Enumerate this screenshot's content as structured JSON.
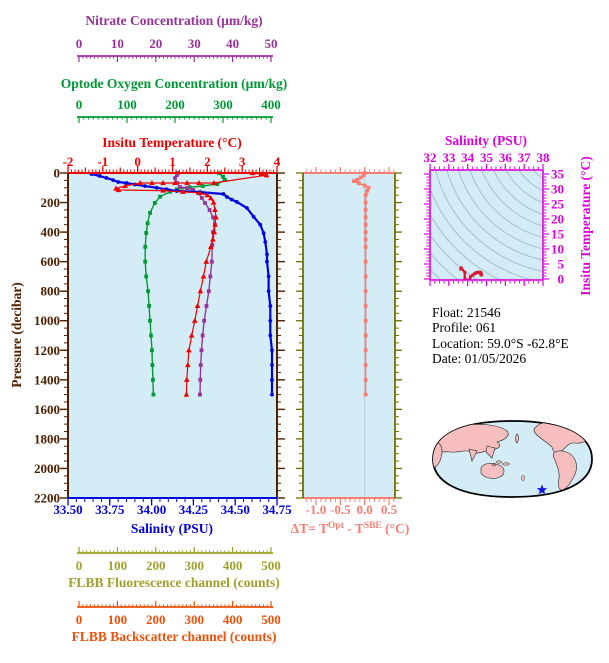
{
  "info_block": {
    "lines": [
      "Float:  21546",
      "Profile:  061",
      "Location:  59.0°S  -62.8°E",
      "Date:  01/05/2026"
    ]
  },
  "colors": {
    "nitrate": "#993399",
    "oxygen": "#009934",
    "temperature": "#ee0000",
    "pressure": "#4e2000",
    "salinity": "#0000dd",
    "delta_t": "#f97d72",
    "panel_side_olive": "#6f6f00",
    "fluorescence": "#a0a02c",
    "backscatter": "#ec520b",
    "ts_axis": "#dd00dd",
    "panel_bg": "#d3ecf5",
    "contour": "#a6bfca",
    "ts_trace": "#da1a32",
    "zero_line": "#bccfd8",
    "map_land": "#f6bebe",
    "map_outline": "#000000",
    "star": "#1212dd",
    "info_text": "#000000"
  },
  "scalebars": {
    "nitrate": {
      "title": "Nitrate Concentration (µm/kg)",
      "tick_values": [
        0,
        10,
        20,
        30,
        40,
        50
      ],
      "tick_labels": [
        "0",
        "10",
        "20",
        "30",
        "40",
        "50"
      ],
      "min": 0,
      "max": 50,
      "minor_step": 1
    },
    "oxygen": {
      "title": "Optode Oxygen Concentration (µm/kg)",
      "tick_values": [
        0,
        100,
        200,
        300,
        400
      ],
      "tick_labels": [
        "0",
        "100",
        "200",
        "300",
        "400"
      ],
      "min": 0,
      "max": 400,
      "minor_step": 10
    },
    "fluorescence": {
      "title": "FLBB Fluorescence channel (counts)",
      "tick_values": [
        0,
        100,
        200,
        300,
        400,
        500
      ],
      "tick_labels": [
        "0",
        "100",
        "200",
        "300",
        "400",
        "500"
      ],
      "min": 0,
      "max": 500,
      "minor_step": 10
    },
    "backscatter": {
      "title": "FLBB Backscatter channel (counts)",
      "tick_values": [
        0,
        100,
        200,
        300,
        400,
        500
      ],
      "tick_labels": [
        "0",
        "100",
        "200",
        "300",
        "400",
        "500"
      ],
      "min": 0,
      "max": 500,
      "minor_step": 10
    }
  },
  "main_panel": {
    "temperature_axis": {
      "title": "Insitu Temperature (°C)",
      "tick_values": [
        -2,
        -1,
        0,
        1,
        2,
        3,
        4
      ],
      "tick_labels": [
        "-2",
        "-1",
        "0",
        "1",
        "2",
        "3",
        "4"
      ],
      "min": -2,
      "max": 4,
      "minor_step": 0.1,
      "mid_step": 0.5
    },
    "pressure_axis": {
      "title": "Pressure (decibar)",
      "tick_values": [
        0,
        200,
        400,
        600,
        800,
        1000,
        1200,
        1400,
        1600,
        1800,
        2000,
        2200
      ],
      "tick_labels": [
        "0",
        "200",
        "400",
        "600",
        "800",
        "1000",
        "1200",
        "1400",
        "1600",
        "1800",
        "2000",
        "2200"
      ],
      "min": 0,
      "max": 2200,
      "minor_step": 50
    },
    "salinity_axis": {
      "title": "Salinity (PSU)",
      "tick_values": [
        33.5,
        33.75,
        34.0,
        34.25,
        34.5,
        34.75
      ],
      "tick_labels": [
        "33.50",
        "33.75",
        "34.00",
        "34.25",
        "34.50",
        "34.75"
      ],
      "min": 33.5,
      "max": 34.75,
      "minor_step": 0.05
    }
  },
  "dt_panel": {
    "x_axis": {
      "title_parts": {
        "pre": "ΔT= T",
        "sup1": "Opt",
        "mid": " - T",
        "sup2": "SBE",
        "post": " (°C)"
      },
      "tick_values": [
        -1,
        -0.5,
        0,
        0.5
      ],
      "tick_labels": [
        "-1.0",
        "-0.5",
        "0.0",
        "0.5"
      ],
      "min": -1.2,
      "max": 0.6,
      "minor_step": 0.1
    }
  },
  "ts_panel": {
    "x_axis": {
      "title": "Salinity (PSU)",
      "tick_values": [
        32,
        33,
        34,
        35,
        36,
        37,
        38
      ],
      "tick_labels": [
        "32",
        "33",
        "34",
        "35",
        "36",
        "37",
        "38"
      ],
      "min": 32,
      "max": 38,
      "minor_step": 0.25
    },
    "y_axis": {
      "title": "Insitu Temperature (°C)",
      "tick_values": [
        0,
        5,
        10,
        15,
        20,
        25,
        30,
        35
      ],
      "tick_labels": [
        "0",
        "5",
        "10",
        "15",
        "20",
        "25",
        "30",
        "35"
      ],
      "min": 0,
      "max": 35,
      "minor_step": 1
    }
  },
  "chart_data": {
    "type": "line",
    "description": "Ocean profiling float vertical profiles versus pressure (temperature, salinity, oxygen, nitrate), optode-minus-SBE temperature difference profile, and a small T-S diagram with isopycnal contours.",
    "pressure_range_db": [
      0,
      2200
    ],
    "profile_max_pressure_db": 1500,
    "series": [
      {
        "name": "Insitu Temperature (°C)",
        "color": "#ee0000",
        "marker": "triangle",
        "xlim": [
          -2,
          4
        ],
        "points_value_pressure": [
          [
            3.3,
            0
          ],
          [
            3.55,
            8
          ],
          [
            3.7,
            15
          ],
          [
            2.19,
            68
          ],
          [
            1.76,
            68
          ],
          [
            1.42,
            68
          ],
          [
            1.07,
            68
          ],
          [
            0.73,
            68
          ],
          [
            0.41,
            68
          ],
          [
            0.07,
            68
          ],
          [
            -0.36,
            88
          ],
          [
            -0.62,
            105
          ],
          [
            -0.55,
            115
          ],
          [
            0.73,
            119
          ],
          [
            1.3,
            127
          ],
          [
            1.78,
            135
          ],
          [
            2.0,
            150
          ],
          [
            2.1,
            170
          ],
          [
            2.18,
            200
          ],
          [
            2.22,
            250
          ],
          [
            2.25,
            300
          ],
          [
            2.22,
            350
          ],
          [
            2.2,
            400
          ],
          [
            2.16,
            450
          ],
          [
            2.1,
            500
          ],
          [
            1.97,
            600
          ],
          [
            1.89,
            700
          ],
          [
            1.8,
            800
          ],
          [
            1.72,
            900
          ],
          [
            1.64,
            1000
          ],
          [
            1.55,
            1100
          ],
          [
            1.47,
            1200
          ],
          [
            1.44,
            1300
          ],
          [
            1.41,
            1400
          ],
          [
            1.4,
            1500
          ]
        ]
      },
      {
        "name": "Salinity (PSU)",
        "color": "#0000dd",
        "marker": "dot",
        "xlim": [
          33.5,
          34.75
        ],
        "points_value_pressure": [
          [
            33.64,
            7
          ],
          [
            33.69,
            20
          ],
          [
            33.73,
            34
          ],
          [
            33.77,
            48
          ],
          [
            33.8,
            61
          ],
          [
            33.85,
            68
          ],
          [
            33.9,
            78
          ],
          [
            33.96,
            88
          ],
          [
            34.03,
            100
          ],
          [
            34.09,
            110
          ],
          [
            34.15,
            122
          ],
          [
            34.29,
            129
          ],
          [
            34.43,
            142
          ],
          [
            34.45,
            162
          ],
          [
            34.48,
            180
          ],
          [
            34.51,
            196
          ],
          [
            34.57,
            237
          ],
          [
            34.61,
            296
          ],
          [
            34.65,
            350
          ],
          [
            34.67,
            406
          ],
          [
            34.68,
            467
          ],
          [
            34.69,
            550
          ],
          [
            34.69,
            600
          ],
          [
            34.7,
            700
          ],
          [
            34.7,
            800
          ],
          [
            34.71,
            900
          ],
          [
            34.71,
            1000
          ],
          [
            34.71,
            1100
          ],
          [
            34.72,
            1200
          ],
          [
            34.72,
            1300
          ],
          [
            34.72,
            1400
          ],
          [
            34.72,
            1500
          ]
        ]
      },
      {
        "name": "Optode Oxygen Concentration (µm/kg)",
        "color": "#009934",
        "marker": "square",
        "xlim": [
          0,
          400
        ],
        "points_value_pressure": [
          [
            292,
            2
          ],
          [
            300,
            25
          ],
          [
            304,
            47
          ],
          [
            288,
            75
          ],
          [
            258,
            88
          ],
          [
            231,
            97
          ],
          [
            204,
            110
          ],
          [
            190,
            127
          ],
          [
            169,
            160
          ],
          [
            158,
            203
          ],
          [
            148,
            270
          ],
          [
            143,
            340
          ],
          [
            140,
            406
          ],
          [
            138,
            500
          ],
          [
            138,
            600
          ],
          [
            140,
            700
          ],
          [
            144,
            800
          ],
          [
            146,
            900
          ],
          [
            148,
            1000
          ],
          [
            150,
            1100
          ],
          [
            152,
            1200
          ],
          [
            153,
            1300
          ],
          [
            154,
            1400
          ],
          [
            155,
            1500
          ]
        ]
      },
      {
        "name": "Nitrate Concentration (µm/kg)",
        "color": "#993399",
        "marker": "square",
        "xlim": [
          0,
          50
        ],
        "points_value_pressure": [
          [
            25.8,
            0
          ],
          [
            25.5,
            14
          ],
          [
            25.0,
            34
          ],
          [
            25.5,
            68
          ],
          [
            26.3,
            95
          ],
          [
            28.1,
            102
          ],
          [
            29.7,
            115
          ],
          [
            31.0,
            135
          ],
          [
            32.0,
            169
          ],
          [
            32.8,
            203
          ],
          [
            34.0,
            250
          ],
          [
            34.9,
            300
          ],
          [
            35.4,
            350
          ],
          [
            34.9,
            400
          ],
          [
            34.7,
            487
          ],
          [
            34.6,
            600
          ],
          [
            34.2,
            700
          ],
          [
            33.8,
            800
          ],
          [
            33.2,
            900
          ],
          [
            32.6,
            1000
          ],
          [
            32.2,
            1100
          ],
          [
            31.9,
            1200
          ],
          [
            31.7,
            1300
          ],
          [
            31.6,
            1400
          ],
          [
            31.5,
            1500
          ]
        ]
      },
      {
        "name": "ΔT = T_Opt - T_SBE (°C)",
        "color": "#f97d72",
        "marker": "square",
        "xlim": [
          -1,
          0.5
        ],
        "points_value_pressure": [
          [
            0,
            0
          ],
          [
            -0.02,
            15
          ],
          [
            -0.08,
            30
          ],
          [
            -0.15,
            45
          ],
          [
            -0.22,
            55
          ],
          [
            -0.12,
            70
          ],
          [
            0,
            85
          ],
          [
            0.08,
            100
          ],
          [
            0.05,
            120
          ],
          [
            0.02,
            150
          ],
          [
            0.02,
            200
          ],
          [
            0.02,
            250
          ],
          [
            0.02,
            300
          ],
          [
            0.02,
            350
          ],
          [
            0.02,
            400
          ],
          [
            0.02,
            450
          ],
          [
            0.02,
            500
          ],
          [
            0.02,
            600
          ],
          [
            0.02,
            700
          ],
          [
            0.02,
            800
          ],
          [
            0.02,
            900
          ],
          [
            0.02,
            1000
          ],
          [
            0.02,
            1100
          ],
          [
            0.02,
            1200
          ],
          [
            0.02,
            1300
          ],
          [
            0.02,
            1400
          ],
          [
            0.02,
            1500
          ]
        ]
      }
    ],
    "ts_diagram": {
      "xlabel": "Salinity (PSU)",
      "ylabel": "Insitu Temperature (°C)",
      "xlim": [
        32,
        38
      ],
      "ylim": [
        0,
        35
      ],
      "points_s_t": [
        [
          33.63,
          3.3
        ],
        [
          33.65,
          3.55
        ],
        [
          33.66,
          3.7
        ],
        [
          33.85,
          2.19
        ],
        [
          33.85,
          0.07
        ],
        [
          33.96,
          -0.36
        ],
        [
          34.06,
          -0.62
        ],
        [
          34.12,
          -0.55
        ],
        [
          34.14,
          0.73
        ],
        [
          34.27,
          1.3
        ],
        [
          34.37,
          1.78
        ],
        [
          34.44,
          2.0
        ],
        [
          34.47,
          2.1
        ],
        [
          34.51,
          2.18
        ],
        [
          34.58,
          2.22
        ],
        [
          34.61,
          2.25
        ],
        [
          34.65,
          2.22
        ],
        [
          34.67,
          2.2
        ],
        [
          34.68,
          2.1
        ],
        [
          34.69,
          1.97
        ],
        [
          34.7,
          1.89
        ],
        [
          34.7,
          1.8
        ],
        [
          34.71,
          1.72
        ],
        [
          34.71,
          1.64
        ],
        [
          34.71,
          1.55
        ],
        [
          34.72,
          1.47
        ],
        [
          34.72,
          1.44
        ],
        [
          34.72,
          1.41
        ],
        [
          34.72,
          1.4
        ]
      ]
    }
  }
}
